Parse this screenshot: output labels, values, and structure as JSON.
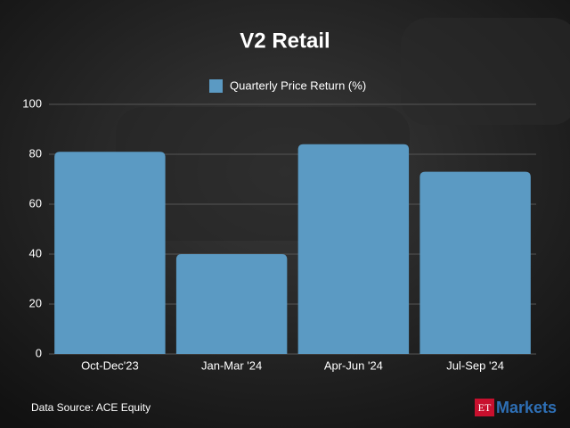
{
  "chart_data": {
    "type": "bar",
    "title": "V2 Retail",
    "categories": [
      "Oct-Dec'23",
      "Jan-Mar '24",
      "Apr-Jun '24",
      "Jul-Sep '24"
    ],
    "series": [
      {
        "name": "Quarterly Price Return (%)",
        "color": "#5b9ac3",
        "values": [
          81,
          40,
          84,
          73
        ]
      }
    ],
    "ylim": [
      0,
      100
    ],
    "yticks": [
      0,
      20,
      40,
      60,
      80,
      100
    ],
    "grid": true,
    "legend": "top"
  },
  "footer": {
    "source": "Data Source: ACE Equity",
    "logo_et": "ET",
    "logo_markets": "Markets"
  }
}
